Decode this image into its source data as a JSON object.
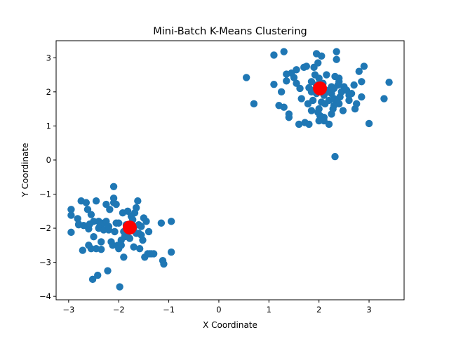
{
  "chart_data": {
    "type": "scatter",
    "title": "Mini-Batch K-Means Clustering",
    "xlabel": "X Coordinate",
    "ylabel": "Y Coordinate",
    "xlim": [
      -3.25,
      3.7
    ],
    "ylim": [
      -4.1,
      3.5
    ],
    "xticks": [
      -3,
      -2,
      -1,
      0,
      1,
      2,
      3
    ],
    "yticks": [
      -4,
      -3,
      -2,
      -1,
      0,
      1,
      2,
      3
    ],
    "grid": false,
    "colors": {
      "points": "#1f77b4",
      "centroids": "#ff0000"
    },
    "series": [
      {
        "role": "points",
        "x": [
          0.55,
          0.7,
          1.1,
          1.1,
          1.2,
          1.25,
          1.3,
          1.3,
          1.35,
          1.35,
          1.4,
          1.45,
          1.5,
          1.55,
          1.6,
          1.62,
          1.7,
          1.72,
          1.75,
          1.78,
          1.8,
          1.8,
          1.85,
          1.85,
          1.88,
          1.9,
          1.9,
          1.92,
          1.95,
          1.95,
          1.98,
          2.0,
          2.0,
          2.02,
          2.05,
          2.05,
          2.08,
          2.1,
          2.1,
          2.12,
          2.15,
          2.18,
          2.2,
          2.2,
          2.25,
          2.25,
          2.28,
          2.3,
          2.3,
          2.32,
          2.35,
          2.35,
          2.38,
          2.4,
          2.4,
          2.42,
          2.45,
          2.48,
          2.5,
          2.55,
          2.6,
          2.65,
          2.7,
          2.72,
          2.75,
          2.8,
          2.85,
          2.85,
          2.9,
          3.0,
          3.3,
          3.4,
          1.4,
          1.55,
          1.65,
          1.98,
          2.25,
          2.0,
          2.35,
          2.4,
          2.6,
          1.85,
          2.1,
          2.2,
          1.95,
          2.3,
          2.32
        ],
        "y": [
          2.42,
          1.65,
          3.08,
          2.22,
          1.6,
          2.0,
          3.18,
          1.55,
          2.52,
          2.32,
          1.25,
          2.55,
          2.42,
          2.25,
          1.05,
          2.1,
          2.72,
          1.1,
          2.75,
          1.65,
          2.12,
          1.05,
          2.3,
          1.45,
          1.75,
          2.72,
          2.05,
          2.5,
          3.12,
          1.95,
          2.85,
          2.4,
          1.5,
          1.3,
          3.05,
          1.7,
          2.25,
          1.9,
          1.15,
          1.65,
          2.5,
          2.0,
          1.75,
          1.05,
          1.35,
          2.15,
          1.5,
          2.1,
          1.8,
          2.45,
          3.18,
          2.95,
          2.2,
          1.65,
          2.4,
          1.85,
          2.0,
          1.45,
          2.15,
          2.05,
          1.75,
          1.95,
          2.2,
          1.5,
          1.65,
          2.6,
          1.85,
          2.3,
          2.75,
          1.07,
          1.8,
          2.28,
          1.35,
          2.65,
          1.8,
          1.4,
          1.95,
          1.15,
          1.7,
          2.3,
          1.9,
          2.0,
          1.25,
          2.05,
          2.2,
          1.6,
          0.1
        ],
        "x2": [
          -2.95,
          -2.95,
          -2.95,
          -2.82,
          -2.8,
          -2.75,
          -2.72,
          -2.7,
          -2.65,
          -2.62,
          -2.6,
          -2.58,
          -2.55,
          -2.55,
          -2.52,
          -2.5,
          -2.5,
          -2.45,
          -2.42,
          -2.4,
          -2.38,
          -2.35,
          -2.35,
          -2.3,
          -2.25,
          -2.22,
          -2.2,
          -2.18,
          -2.15,
          -2.12,
          -2.1,
          -2.1,
          -2.08,
          -2.05,
          -2.02,
          -2.0,
          -1.98,
          -1.95,
          -1.92,
          -1.9,
          -1.88,
          -1.85,
          -1.82,
          -1.8,
          -1.78,
          -1.75,
          -1.72,
          -1.7,
          -1.68,
          -1.65,
          -1.62,
          -1.6,
          -1.58,
          -1.55,
          -1.52,
          -1.5,
          -1.48,
          -1.45,
          -1.42,
          -1.4,
          -1.38,
          -1.35,
          -1.3,
          -1.15,
          -1.12,
          -1.1,
          -0.95,
          -0.95,
          -2.8,
          -2.6,
          -2.4,
          -2.3,
          -2.2,
          -2.0,
          -1.9,
          -1.7,
          -1.6,
          -2.1,
          -1.65,
          -2.45,
          -2.25,
          -1.95,
          -1.55,
          -2.05
        ],
        "y2": [
          -1.45,
          -1.62,
          -2.12,
          -1.72,
          -1.9,
          -1.2,
          -2.65,
          -1.92,
          -1.25,
          -1.45,
          -2.02,
          -1.88,
          -1.6,
          -2.6,
          -3.5,
          -1.8,
          -2.25,
          -1.2,
          -3.38,
          -2.0,
          -1.95,
          -2.4,
          -2.62,
          -1.85,
          -1.8,
          -3.25,
          -2.05,
          -1.45,
          -2.4,
          -2.5,
          -0.78,
          -1.12,
          -2.1,
          -1.3,
          -2.5,
          -2.6,
          -3.72,
          -2.35,
          -1.55,
          -2.85,
          -2.25,
          -1.9,
          -1.5,
          -2.1,
          -2.3,
          -1.65,
          -1.75,
          -2.55,
          -1.55,
          -1.4,
          -1.2,
          -2.15,
          -2.6,
          -1.95,
          -2.35,
          -1.7,
          -2.85,
          -1.8,
          -2.75,
          -2.1,
          -2.75,
          -2.75,
          -2.75,
          -1.85,
          -2.95,
          -3.05,
          -2.7,
          -1.8,
          -1.88,
          -2.5,
          -1.8,
          -2.05,
          -1.95,
          -1.85,
          -2.1,
          -2.0,
          -1.9,
          -1.25,
          -2.15,
          -2.6,
          -1.3,
          -2.5,
          -2.2,
          -1.85
        ]
      },
      {
        "role": "centroids",
        "x": [
          2.02,
          -1.78
        ],
        "y": [
          2.1,
          -1.98
        ]
      }
    ]
  }
}
